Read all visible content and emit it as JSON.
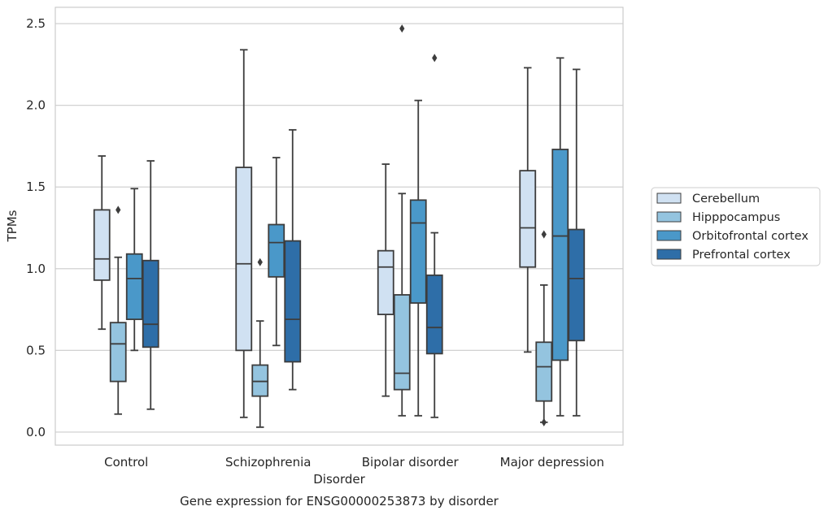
{
  "chart_data": {
    "type": "box",
    "title": "",
    "caption": "Gene expression for ENSG00000253873 by disorder",
    "xlabel": "Disorder",
    "ylabel": "TPMs",
    "ylim": [
      -0.08,
      2.6
    ],
    "yticks": [
      0.0,
      0.5,
      1.0,
      1.5,
      2.0,
      2.5
    ],
    "ytick_labels": [
      "0.0",
      "0.5",
      "1.0",
      "1.5",
      "2.0",
      "2.5"
    ],
    "grid": "horizontal",
    "legend_position": "right",
    "categories": [
      "Control",
      "Schizophrenia",
      "Bipolar disorder",
      "Major depression"
    ],
    "series": [
      {
        "name": "Cerebellum",
        "color": "#d0e1f2",
        "boxes": [
          {
            "whislo": 0.63,
            "q1": 0.93,
            "med": 1.06,
            "q3": 1.36,
            "whishi": 1.69,
            "fliers": []
          },
          {
            "whislo": 0.09,
            "q1": 0.5,
            "med": 1.03,
            "q3": 1.62,
            "whishi": 2.34,
            "fliers": []
          },
          {
            "whislo": 0.22,
            "q1": 0.72,
            "med": 1.01,
            "q3": 1.11,
            "whishi": 1.64,
            "fliers": []
          },
          {
            "whislo": 0.49,
            "q1": 1.01,
            "med": 1.25,
            "q3": 1.6,
            "whishi": 2.23,
            "fliers": []
          }
        ]
      },
      {
        "name": "Hipppocampus",
        "color": "#94c4df",
        "boxes": [
          {
            "whislo": 0.11,
            "q1": 0.31,
            "med": 0.54,
            "q3": 0.67,
            "whishi": 1.07,
            "fliers": [
              1.36
            ]
          },
          {
            "whislo": 0.03,
            "q1": 0.22,
            "med": 0.31,
            "q3": 0.41,
            "whishi": 0.68,
            "fliers": [
              1.04
            ]
          },
          {
            "whislo": 0.1,
            "q1": 0.26,
            "med": 0.36,
            "q3": 0.84,
            "whishi": 1.46,
            "fliers": [
              2.47
            ]
          },
          {
            "whislo": 0.06,
            "q1": 0.19,
            "med": 0.4,
            "q3": 0.55,
            "whishi": 0.9,
            "fliers": [
              0.06,
              1.21
            ]
          }
        ]
      },
      {
        "name": "Orbitofrontal cortex",
        "color": "#4a98c9",
        "boxes": [
          {
            "whislo": 0.5,
            "q1": 0.69,
            "med": 0.94,
            "q3": 1.09,
            "whishi": 1.49,
            "fliers": []
          },
          {
            "whislo": 0.53,
            "q1": 0.95,
            "med": 1.16,
            "q3": 1.27,
            "whishi": 1.68,
            "fliers": []
          },
          {
            "whislo": 0.1,
            "q1": 0.79,
            "med": 1.28,
            "q3": 1.42,
            "whishi": 2.03,
            "fliers": []
          },
          {
            "whislo": 0.1,
            "q1": 0.44,
            "med": 1.2,
            "q3": 1.73,
            "whishi": 2.29,
            "fliers": []
          }
        ]
      },
      {
        "name": "Prefrontal cortex",
        "color": "#2e6ea8",
        "boxes": [
          {
            "whislo": 0.14,
            "q1": 0.52,
            "med": 0.66,
            "q3": 1.05,
            "whishi": 1.66,
            "fliers": []
          },
          {
            "whislo": 0.26,
            "q1": 0.43,
            "med": 0.69,
            "q3": 1.17,
            "whishi": 1.85,
            "fliers": []
          },
          {
            "whislo": 0.09,
            "q1": 0.48,
            "med": 0.64,
            "q3": 0.96,
            "whishi": 1.22,
            "fliers": [
              2.29
            ]
          },
          {
            "whislo": 0.1,
            "q1": 0.56,
            "med": 0.94,
            "q3": 1.24,
            "whishi": 2.22,
            "fliers": []
          }
        ]
      }
    ]
  }
}
